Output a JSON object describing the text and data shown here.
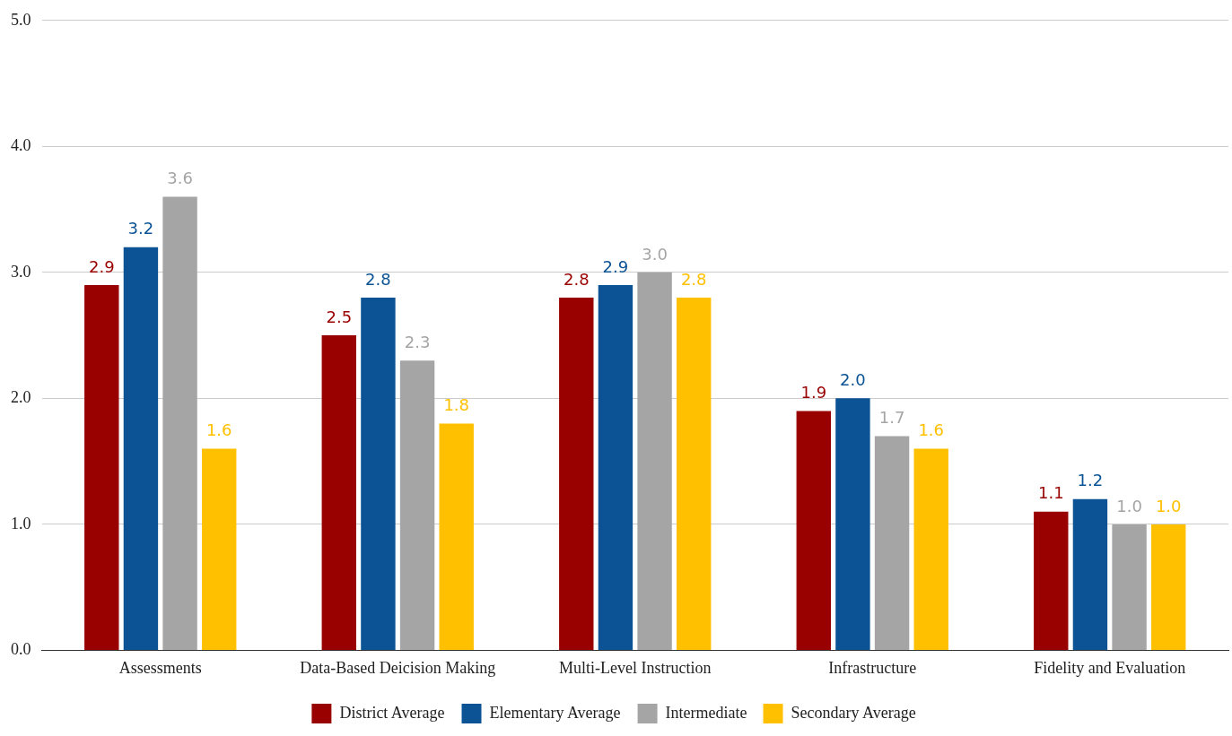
{
  "chart_data": {
    "type": "bar",
    "categories": [
      "Assessments",
      "Data-Based Deicision Making",
      "Multi-Level Instruction",
      "Infrastructure",
      "Fidelity and Evaluation"
    ],
    "series": [
      {
        "name": "District Average",
        "color": "#990000",
        "values": [
          2.9,
          2.5,
          2.8,
          1.9,
          1.1
        ],
        "value_labels": [
          "2.9",
          "2.5",
          "2.8",
          "1.9",
          "1.1"
        ]
      },
      {
        "name": "Elementary Average",
        "color": "#0b5394",
        "values": [
          3.2,
          2.8,
          2.9,
          2.0,
          1.2
        ],
        "value_labels": [
          "3.2",
          "2.8",
          "2.9",
          "2.0",
          "1.2"
        ]
      },
      {
        "name": "Intermediate",
        "color": "#a5a5a5",
        "values": [
          3.6,
          2.3,
          3.0,
          1.7,
          1.0
        ],
        "value_labels": [
          "3.6",
          "2.3",
          "3.0",
          "1.7",
          "1.0"
        ]
      },
      {
        "name": "Secondary Average",
        "color": "#ffc000",
        "values": [
          1.6,
          1.8,
          2.8,
          1.6,
          1.0
        ],
        "value_labels": [
          "1.6",
          "1.8",
          "2.8",
          "1.6",
          "1.0"
        ]
      }
    ],
    "ylim": [
      0,
      5
    ],
    "yticks": [
      {
        "value": 0,
        "label": "0.0"
      },
      {
        "value": 1,
        "label": "1.0"
      },
      {
        "value": 2,
        "label": "2.0"
      },
      {
        "value": 3,
        "label": "3.0"
      },
      {
        "value": 4,
        "label": "4.0"
      },
      {
        "value": 5,
        "label": "5.0"
      }
    ],
    "grid": "y",
    "legend": "bottom"
  }
}
